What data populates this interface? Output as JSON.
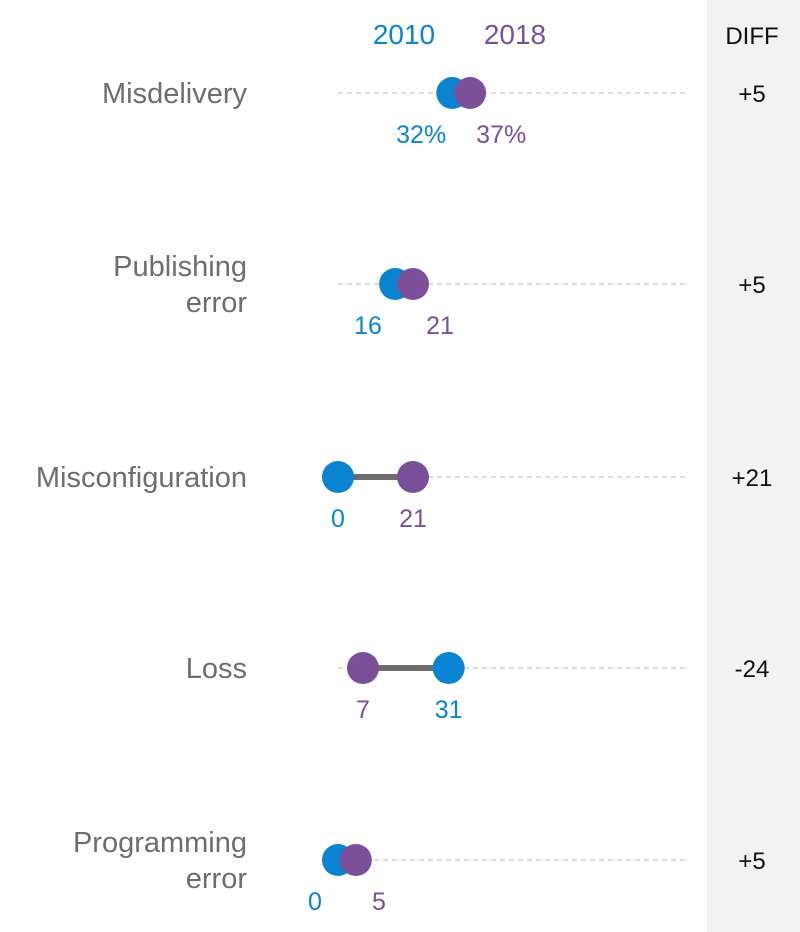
{
  "chart_data": {
    "type": "dumbbell",
    "series": [
      {
        "name": "2010",
        "color": "#0a84d0"
      },
      {
        "name": "2018",
        "color": "#7b4f9a"
      }
    ],
    "diff_header": "DIFF",
    "xlim": [
      0,
      37
    ],
    "grid": false,
    "connector_color": "#6d6d6d",
    "guide_color": "#c8c8c8",
    "diff_column_bg": "#f2f2f2",
    "rows": [
      {
        "category": [
          "Misdelivery"
        ],
        "v2010": 32,
        "v2018": 37,
        "label2010": "32%",
        "label2018": "37%",
        "diff": "+5"
      },
      {
        "category": [
          "Publishing",
          "error"
        ],
        "v2010": 16,
        "v2018": 21,
        "label2010": "16",
        "label2018": "21",
        "diff": "+5"
      },
      {
        "category": [
          "Misconfiguration"
        ],
        "v2010": 0,
        "v2018": 21,
        "label2010": "0",
        "label2018": "21",
        "diff": "+21"
      },
      {
        "category": [
          "Loss"
        ],
        "v2010": 31,
        "v2018": 7,
        "label2010": "31",
        "label2018": "7",
        "diff": "-24"
      },
      {
        "category": [
          "Programming",
          "error"
        ],
        "v2010": 0,
        "v2018": 5,
        "label2010": "0",
        "label2018": "5",
        "diff": "+5"
      }
    ]
  }
}
